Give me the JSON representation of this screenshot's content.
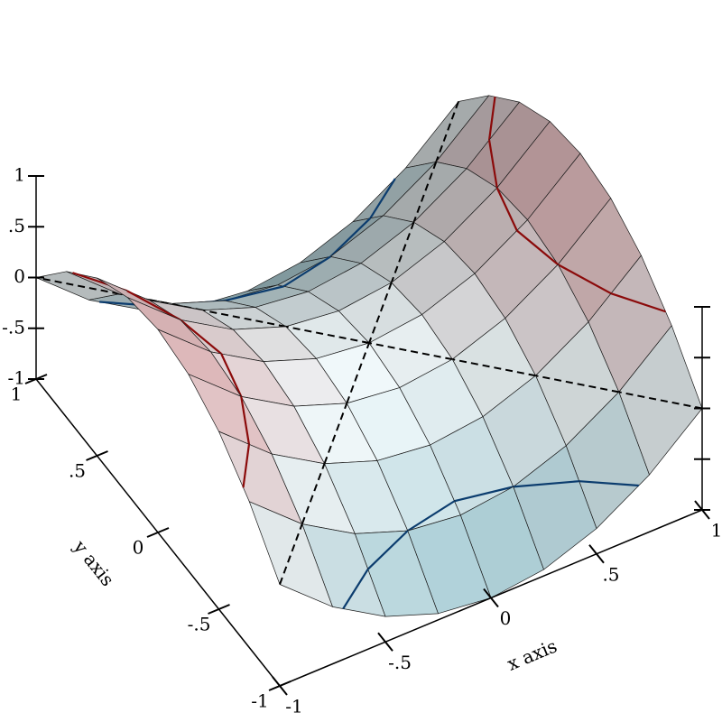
{
  "chart_data": {
    "type": "surface3d",
    "x_label": "x axis",
    "y_label": "y axis",
    "x": [
      -1,
      -0.75,
      -0.5,
      -0.25,
      0,
      0.25,
      0.5,
      0.75,
      1
    ],
    "y": [
      -1,
      -0.75,
      -0.5,
      -0.25,
      0,
      0.25,
      0.5,
      0.75,
      1
    ],
    "z": [
      [
        0,
        -0.4375,
        -0.75,
        -0.9375,
        -1,
        -0.9375,
        -0.75,
        -0.4375,
        0
      ],
      [
        0.4375,
        0,
        -0.3125,
        -0.5,
        -0.5625,
        -0.5,
        -0.3125,
        0,
        0.4375
      ],
      [
        0.75,
        0.3125,
        0,
        -0.1875,
        -0.25,
        -0.1875,
        0,
        0.3125,
        0.75
      ],
      [
        0.9375,
        0.5,
        0.1875,
        0,
        -0.0625,
        0,
        0.1875,
        0.5,
        0.9375
      ],
      [
        1,
        0.5625,
        0.25,
        0.0625,
        0,
        0.0625,
        0.25,
        0.5625,
        1
      ],
      [
        0.9375,
        0.5,
        0.1875,
        0,
        -0.0625,
        0,
        0.1875,
        0.5,
        0.9375
      ],
      [
        0.75,
        0.3125,
        0,
        -0.1875,
        -0.25,
        -0.1875,
        0,
        0.3125,
        0.75
      ],
      [
        0.4375,
        0,
        -0.3125,
        -0.5,
        -0.5625,
        -0.5,
        -0.3125,
        0,
        0.4375
      ],
      [
        0,
        -0.4375,
        -0.75,
        -0.9375,
        -1,
        -0.9375,
        -0.75,
        -0.4375,
        0
      ]
    ],
    "xlim": [
      -1,
      1
    ],
    "ylim": [
      -1,
      1
    ],
    "zlim": [
      -1,
      1
    ],
    "xticks": [
      -1,
      {
        "value": -0.5,
        "label": "-.5"
      },
      0,
      {
        "value": 0.5,
        "label": ".5"
      },
      1
    ],
    "yticks": [
      -1,
      {
        "value": -0.5,
        "label": "-.5"
      },
      0,
      {
        "value": 0.5,
        "label": ".5"
      },
      1
    ],
    "zticks": [
      -1,
      {
        "value": -0.5,
        "label": "-.5"
      },
      0,
      {
        "value": 0.5,
        "label": ".5"
      },
      1
    ],
    "low_color": "#a9d5df",
    "mid_color": "#f2fafc",
    "high_color": "#f5bcbe",
    "contours": [
      {
        "level": -0.5,
        "color": "#0b3c6e",
        "dashed": false
      },
      {
        "level": 0,
        "color": "#000000",
        "dashed": true
      },
      {
        "level": 0.5,
        "color": "#8b0a0a",
        "dashed": false
      }
    ]
  }
}
